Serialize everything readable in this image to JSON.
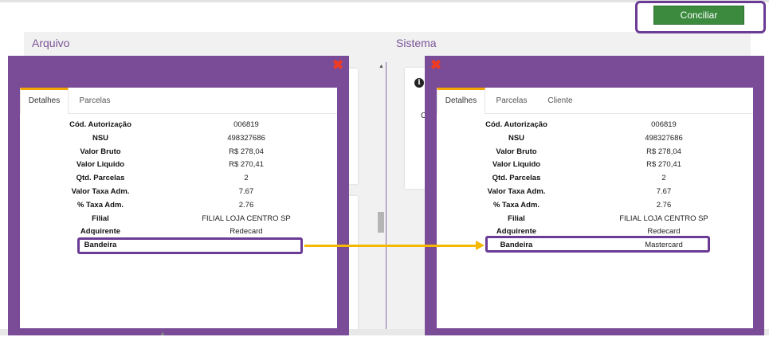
{
  "header": {
    "conciliar_label": "Conciliar"
  },
  "sections": {
    "arquivo_title": "Arquivo",
    "sistema_title": "Sistema"
  },
  "background": {
    "partial_letter": "C"
  },
  "modal_left": {
    "close_glyph": "✖",
    "tabs": [
      "Detalhes",
      "Parcelas"
    ],
    "active_tab": "Detalhes",
    "rows": [
      {
        "label": "Cód. Autorização",
        "value": "006819"
      },
      {
        "label": "NSU",
        "value": "498327686"
      },
      {
        "label": "Valor Bruto",
        "value": "R$ 278,04"
      },
      {
        "label": "Valor Liquido",
        "value": "R$ 270,41"
      },
      {
        "label": "Qtd. Parcelas",
        "value": "2"
      },
      {
        "label": "Valor Taxa Adm.",
        "value": "7.67"
      },
      {
        "label": "% Taxa Adm.",
        "value": "2.76"
      },
      {
        "label": "Filial",
        "value": "FILIAL LOJA CENTRO SP"
      },
      {
        "label": "Adquirente",
        "value": "Redecard"
      },
      {
        "label": "Bandeira",
        "value": ""
      }
    ]
  },
  "modal_right": {
    "close_glyph": "✖",
    "tabs": [
      "Detalhes",
      "Parcelas",
      "Cliente"
    ],
    "active_tab": "Detalhes",
    "rows": [
      {
        "label": "Cód. Autorização",
        "value": "006819"
      },
      {
        "label": "NSU",
        "value": "498327686"
      },
      {
        "label": "Valor Bruto",
        "value": "R$ 278,04"
      },
      {
        "label": "Valor Liquido",
        "value": "R$ 270,41"
      },
      {
        "label": "Qtd. Parcelas",
        "value": "2"
      },
      {
        "label": "Valor Taxa Adm.",
        "value": "7.67"
      },
      {
        "label": "% Taxa Adm.",
        "value": "2.76"
      },
      {
        "label": "Filial",
        "value": "FILIAL LOJA CENTRO SP"
      },
      {
        "label": "Adquirente",
        "value": "Redecard"
      },
      {
        "label": "Bandeira",
        "value": "Mastercard"
      }
    ]
  },
  "colors": {
    "modal_purple": "#7a4c98",
    "highlight_purple": "#6b3b95",
    "arrow_yellow": "#f5b800",
    "button_green": "#3b8a3e",
    "close_red": "#ef3b24",
    "tab_accent": "#f0a500"
  },
  "icons": {
    "close": "close-icon",
    "info": "info-icon"
  }
}
